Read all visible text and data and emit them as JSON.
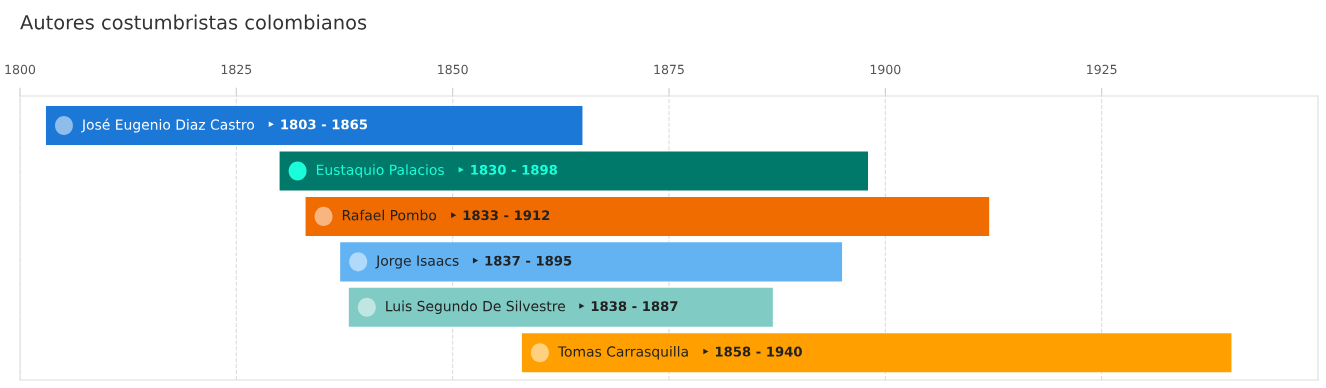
{
  "chart_data": {
    "type": "bar",
    "orientation": "horizontal",
    "title": "Autores costumbristas colombianos",
    "categories": [
      "José Eugenio Diaz Castro",
      "Eustaquio Palacios",
      "Rafael Pombo",
      "Jorge Isaacs",
      "Luis Segundo De Silvestre",
      "Tomas Carrasquilla"
    ],
    "base": [
      1803,
      1830,
      1833,
      1837,
      1838,
      1858
    ],
    "values": [
      62,
      68,
      79,
      58,
      49,
      82
    ],
    "value_labels": [
      "‣ 1803 - 1865",
      "‣ 1830 - 1898",
      "‣ 1833 - 1912",
      "‣ 1837 - 1895",
      "‣ 1838 - 1887",
      "‣ 1858 - 1940"
    ],
    "colors": [
      "#1c78d6",
      "#00796b",
      "#f06c00",
      "#63b3f3",
      "#80cbc4",
      "#ffa000"
    ],
    "xlim": [
      1800,
      1950
    ],
    "xticks": [
      1800,
      1825,
      1850,
      1875,
      1900,
      1925
    ],
    "grid": "x"
  }
}
